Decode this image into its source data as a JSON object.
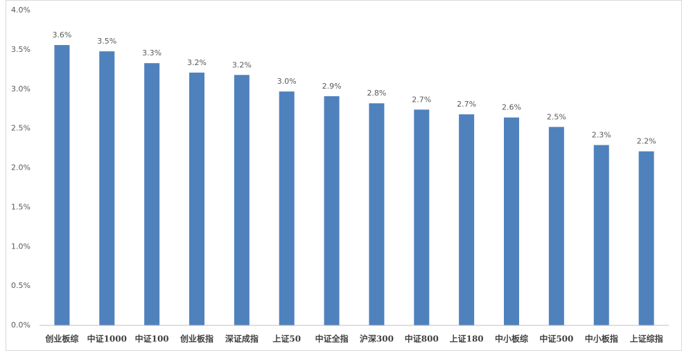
{
  "chart_data": {
    "type": "bar",
    "categories": [
      "创业板综",
      "中证1000",
      "中证100",
      "创业板指",
      "深证成指",
      "上证50",
      "中证全指",
      "沪深300",
      "中证800",
      "上证180",
      "中小板综",
      "中证500",
      "中小板指",
      "上证综指"
    ],
    "values": [
      3.56,
      3.48,
      3.33,
      3.21,
      3.18,
      2.97,
      2.91,
      2.82,
      2.74,
      2.68,
      2.64,
      2.52,
      2.29,
      2.21
    ],
    "value_labels": [
      "3.6%",
      "3.5%",
      "3.3%",
      "3.2%",
      "3.2%",
      "3.0%",
      "2.9%",
      "2.8%",
      "2.7%",
      "2.7%",
      "2.6%",
      "2.5%",
      "2.3%",
      "2.2%"
    ],
    "color": "#4f81bd",
    "ylim": [
      0,
      4
    ],
    "yticks": [
      {
        "value": 0,
        "label": "0.0%"
      },
      {
        "value": 0.5,
        "label": "0.5%"
      },
      {
        "value": 1,
        "label": "1.0%"
      },
      {
        "value": 1.5,
        "label": "1.5%"
      },
      {
        "value": 2,
        "label": "2.0%"
      },
      {
        "value": 2.5,
        "label": "2.5%"
      },
      {
        "value": 3,
        "label": "3.0%"
      },
      {
        "value": 3.5,
        "label": "3.5%"
      },
      {
        "value": 4,
        "label": "4.0%"
      }
    ],
    "grid": false
  }
}
